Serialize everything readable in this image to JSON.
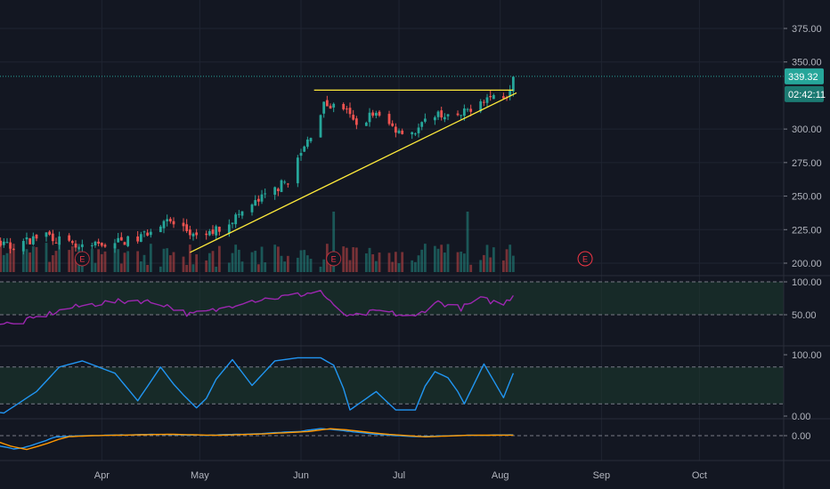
{
  "chart_data": {
    "type": "candlestick-with-indicators",
    "x_axis": {
      "ticks": [
        "Apr",
        "May",
        "Jun",
        "Jul",
        "Aug",
        "Sep",
        "Oct"
      ]
    },
    "price_pane": {
      "y_ticks": [
        "375.00",
        "350.00",
        "300.00",
        "275.00",
        "250.00",
        "225.00",
        "200.00"
      ],
      "ylim": [
        195,
        385
      ],
      "last_price_label": "339.32",
      "countdown_label": "02:42:11",
      "earnings_marker": "E",
      "earnings_dates": [
        "2021-03-26",
        "2021-06-11",
        "2021-08-27"
      ],
      "resistance_line": {
        "from": [
          "2021-06-05",
          329
        ],
        "to": [
          "2021-08-05",
          329
        ]
      },
      "support_line": {
        "from": [
          "2021-04-28",
          208
        ],
        "to": [
          "2021-08-06",
          327
        ]
      },
      "close_anchors": [
        [
          "2021-02-15",
          228
        ],
        [
          "2021-02-24",
          218
        ],
        [
          "2021-03-04",
          212
        ],
        [
          "2021-03-15",
          222
        ],
        [
          "2021-03-25",
          210
        ],
        [
          "2021-04-01",
          214
        ],
        [
          "2021-04-12",
          218
        ],
        [
          "2021-04-20",
          232
        ],
        [
          "2021-04-26",
          226
        ],
        [
          "2021-04-30",
          218
        ],
        [
          "2021-05-07",
          226
        ],
        [
          "2021-05-14",
          238
        ],
        [
          "2021-05-21",
          250
        ],
        [
          "2021-05-28",
          262
        ],
        [
          "2021-06-04",
          296
        ],
        [
          "2021-06-08",
          318
        ],
        [
          "2021-06-14",
          316
        ],
        [
          "2021-06-18",
          302
        ],
        [
          "2021-06-23",
          312
        ],
        [
          "2021-06-30",
          300
        ],
        [
          "2021-07-06",
          298
        ],
        [
          "2021-07-12",
          312
        ],
        [
          "2021-07-19",
          308
        ],
        [
          "2021-07-26",
          322
        ],
        [
          "2021-07-29",
          324
        ],
        [
          "2021-08-03",
          326
        ],
        [
          "2021-08-05",
          339
        ]
      ]
    },
    "volume": {
      "earnings_spikes": [
        "2021-06-11",
        "2021-07-22"
      ]
    },
    "rsi_pane": {
      "y_ticks": [
        "100.00",
        "50.00"
      ],
      "band": [
        50,
        100
      ],
      "color": "#9c27b0",
      "anchors": [
        [
          "2021-02-15",
          52
        ],
        [
          "2021-02-25",
          40
        ],
        [
          "2021-03-05",
          35
        ],
        [
          "2021-03-15",
          50
        ],
        [
          "2021-03-22",
          60
        ],
        [
          "2021-04-01",
          68
        ],
        [
          "2021-04-12",
          72
        ],
        [
          "2021-04-20",
          66
        ],
        [
          "2021-04-28",
          50
        ],
        [
          "2021-05-07",
          58
        ],
        [
          "2021-05-14",
          70
        ],
        [
          "2021-05-21",
          74
        ],
        [
          "2021-05-31",
          80
        ],
        [
          "2021-06-07",
          86
        ],
        [
          "2021-06-11",
          62
        ],
        [
          "2021-06-16",
          46
        ],
        [
          "2021-06-25",
          56
        ],
        [
          "2021-07-01",
          50
        ],
        [
          "2021-07-06",
          46
        ],
        [
          "2021-07-12",
          70
        ],
        [
          "2021-07-20",
          60
        ],
        [
          "2021-07-26",
          74
        ],
        [
          "2021-08-02",
          66
        ],
        [
          "2021-08-05",
          80
        ]
      ]
    },
    "stoch_pane": {
      "y_ticks": [
        "100.00",
        "0.00"
      ],
      "band": [
        20,
        80
      ],
      "color": "#2196f3",
      "anchors": [
        [
          "2021-02-15",
          20
        ],
        [
          "2021-02-25",
          8
        ],
        [
          "2021-03-02",
          5
        ],
        [
          "2021-03-12",
          40
        ],
        [
          "2021-03-19",
          80
        ],
        [
          "2021-03-26",
          90
        ],
        [
          "2021-04-05",
          70
        ],
        [
          "2021-04-12",
          25
        ],
        [
          "2021-04-19",
          80
        ],
        [
          "2021-04-24",
          45
        ],
        [
          "2021-05-01",
          8
        ],
        [
          "2021-05-06",
          60
        ],
        [
          "2021-05-11",
          92
        ],
        [
          "2021-05-17",
          50
        ],
        [
          "2021-05-24",
          90
        ],
        [
          "2021-05-31",
          95
        ],
        [
          "2021-06-07",
          95
        ],
        [
          "2021-06-12",
          80
        ],
        [
          "2021-06-16",
          10
        ],
        [
          "2021-06-24",
          40
        ],
        [
          "2021-06-30",
          10
        ],
        [
          "2021-07-06",
          10
        ],
        [
          "2021-07-11",
          75
        ],
        [
          "2021-07-17",
          60
        ],
        [
          "2021-07-21",
          20
        ],
        [
          "2021-07-27",
          85
        ],
        [
          "2021-08-02",
          30
        ],
        [
          "2021-08-05",
          70
        ]
      ]
    },
    "macd_pane": {
      "y_ticks": [
        "0.00"
      ],
      "series_colors": [
        "#2196f3",
        "#ff9800"
      ],
      "anchors": [
        [
          "2021-02-15",
          -2
        ],
        [
          "2021-02-24",
          -4
        ],
        [
          "2021-03-01",
          -9
        ],
        [
          "2021-03-06",
          -12
        ],
        [
          "2021-03-12",
          -7
        ],
        [
          "2021-03-18",
          -1
        ],
        [
          "2021-03-26",
          0
        ],
        [
          "2021-04-05",
          0.5
        ],
        [
          "2021-04-19",
          1.2
        ],
        [
          "2021-05-03",
          0.3
        ],
        [
          "2021-05-17",
          1.5
        ],
        [
          "2021-05-31",
          3.5
        ],
        [
          "2021-06-07",
          6
        ],
        [
          "2021-06-12",
          5
        ],
        [
          "2021-06-23",
          1.5
        ],
        [
          "2021-07-06",
          -1
        ],
        [
          "2021-07-19",
          0.3
        ],
        [
          "2021-08-05",
          0.5
        ]
      ]
    },
    "colors": {
      "up": "#26a69a",
      "down": "#ef5350",
      "trendline": "#ffeb3b",
      "grid": "#1f2431",
      "band": "#1b3a2e",
      "last_price_line": "#26a69a",
      "earnings": "#f23645"
    }
  }
}
